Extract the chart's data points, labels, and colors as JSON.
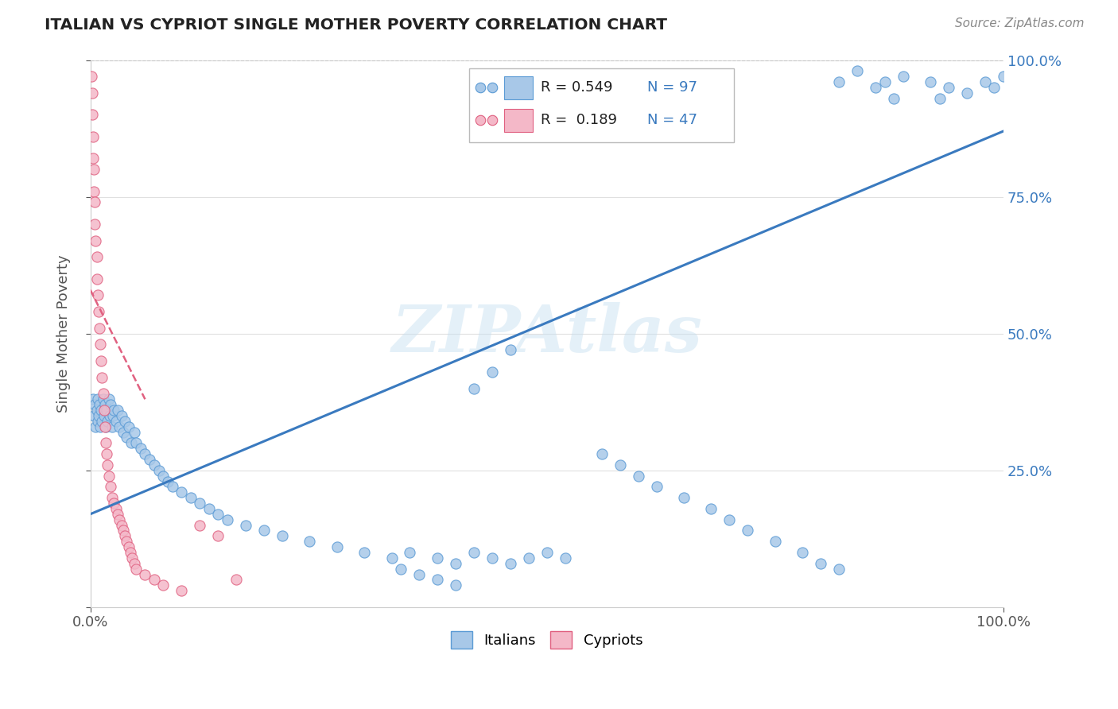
{
  "title": "ITALIAN VS CYPRIOT SINGLE MOTHER POVERTY CORRELATION CHART",
  "source": "Source: ZipAtlas.com",
  "ylabel": "Single Mother Poverty",
  "watermark": "ZIPAtlas",
  "italian_color": "#a8c8e8",
  "italian_edge_color": "#5b9bd5",
  "cypriot_color": "#f4b8c8",
  "cypriot_edge_color": "#e06080",
  "trend_italian_color": "#3a7abf",
  "trend_cypriot_color": "#e06080",
  "bg_color": "#ffffff",
  "grid_color": "#e0e0e0",
  "italian_x": [
    0.003,
    0.004,
    0.005,
    0.006,
    0.007,
    0.008,
    0.008,
    0.009,
    0.01,
    0.011,
    0.012,
    0.013,
    0.014,
    0.015,
    0.016,
    0.017,
    0.018,
    0.019,
    0.02,
    0.021,
    0.022,
    0.024,
    0.025,
    0.026,
    0.028,
    0.03,
    0.032,
    0.034,
    0.036,
    0.038,
    0.04,
    0.042,
    0.045,
    0.048,
    0.05,
    0.055,
    0.06,
    0.065,
    0.07,
    0.075,
    0.08,
    0.085,
    0.09,
    0.1,
    0.11,
    0.12,
    0.13,
    0.14,
    0.15,
    0.17,
    0.19,
    0.21,
    0.24,
    0.27,
    0.3,
    0.33,
    0.35,
    0.38,
    0.4,
    0.42,
    0.44,
    0.46,
    0.48,
    0.5,
    0.52,
    0.46,
    0.44,
    0.42,
    0.82,
    0.84,
    0.86,
    0.87,
    0.88,
    0.89,
    0.92,
    0.93,
    0.94,
    0.96,
    0.98,
    0.99,
    1.0,
    0.56,
    0.58,
    0.6,
    0.62,
    0.65,
    0.68,
    0.7,
    0.72,
    0.75,
    0.78,
    0.8,
    0.82,
    0.34,
    0.36,
    0.38,
    0.4
  ],
  "italian_y": [
    0.38,
    0.35,
    0.37,
    0.33,
    0.36,
    0.34,
    0.38,
    0.35,
    0.37,
    0.33,
    0.36,
    0.34,
    0.38,
    0.35,
    0.37,
    0.33,
    0.36,
    0.34,
    0.38,
    0.35,
    0.37,
    0.33,
    0.35,
    0.36,
    0.34,
    0.36,
    0.33,
    0.35,
    0.32,
    0.34,
    0.31,
    0.33,
    0.3,
    0.32,
    0.3,
    0.29,
    0.28,
    0.27,
    0.26,
    0.25,
    0.24,
    0.23,
    0.22,
    0.21,
    0.2,
    0.19,
    0.18,
    0.17,
    0.16,
    0.15,
    0.14,
    0.13,
    0.12,
    0.11,
    0.1,
    0.09,
    0.1,
    0.09,
    0.08,
    0.1,
    0.09,
    0.08,
    0.09,
    0.1,
    0.09,
    0.47,
    0.43,
    0.4,
    0.96,
    0.98,
    0.95,
    0.96,
    0.93,
    0.97,
    0.96,
    0.93,
    0.95,
    0.94,
    0.96,
    0.95,
    0.97,
    0.28,
    0.26,
    0.24,
    0.22,
    0.2,
    0.18,
    0.16,
    0.14,
    0.12,
    0.1,
    0.08,
    0.07,
    0.07,
    0.06,
    0.05,
    0.04
  ],
  "cypriot_x": [
    0.001,
    0.002,
    0.002,
    0.003,
    0.003,
    0.004,
    0.004,
    0.005,
    0.005,
    0.006,
    0.007,
    0.007,
    0.008,
    0.009,
    0.01,
    0.011,
    0.012,
    0.013,
    0.014,
    0.015,
    0.016,
    0.017,
    0.018,
    0.019,
    0.02,
    0.022,
    0.024,
    0.026,
    0.028,
    0.03,
    0.032,
    0.034,
    0.036,
    0.038,
    0.04,
    0.042,
    0.044,
    0.046,
    0.048,
    0.05,
    0.06,
    0.07,
    0.08,
    0.1,
    0.12,
    0.14,
    0.16
  ],
  "cypriot_y": [
    0.97,
    0.94,
    0.9,
    0.86,
    0.82,
    0.8,
    0.76,
    0.74,
    0.7,
    0.67,
    0.64,
    0.6,
    0.57,
    0.54,
    0.51,
    0.48,
    0.45,
    0.42,
    0.39,
    0.36,
    0.33,
    0.3,
    0.28,
    0.26,
    0.24,
    0.22,
    0.2,
    0.19,
    0.18,
    0.17,
    0.16,
    0.15,
    0.14,
    0.13,
    0.12,
    0.11,
    0.1,
    0.09,
    0.08,
    0.07,
    0.06,
    0.05,
    0.04,
    0.03,
    0.15,
    0.13,
    0.05
  ],
  "trend_it_x0": 0.0,
  "trend_it_x1": 1.0,
  "trend_it_y0": 0.17,
  "trend_it_y1": 0.87,
  "trend_cy_x0": 0.0,
  "trend_cy_x1": 0.06,
  "trend_cy_y0": 0.58,
  "trend_cy_y1": 0.38,
  "xlim": [
    0.0,
    1.0
  ],
  "ylim": [
    0.0,
    1.0
  ],
  "right_ytick_values": [
    0.25,
    0.5,
    0.75,
    1.0
  ],
  "right_ytick_labels": [
    "25.0%",
    "50.0%",
    "75.0%",
    "100.0%"
  ]
}
